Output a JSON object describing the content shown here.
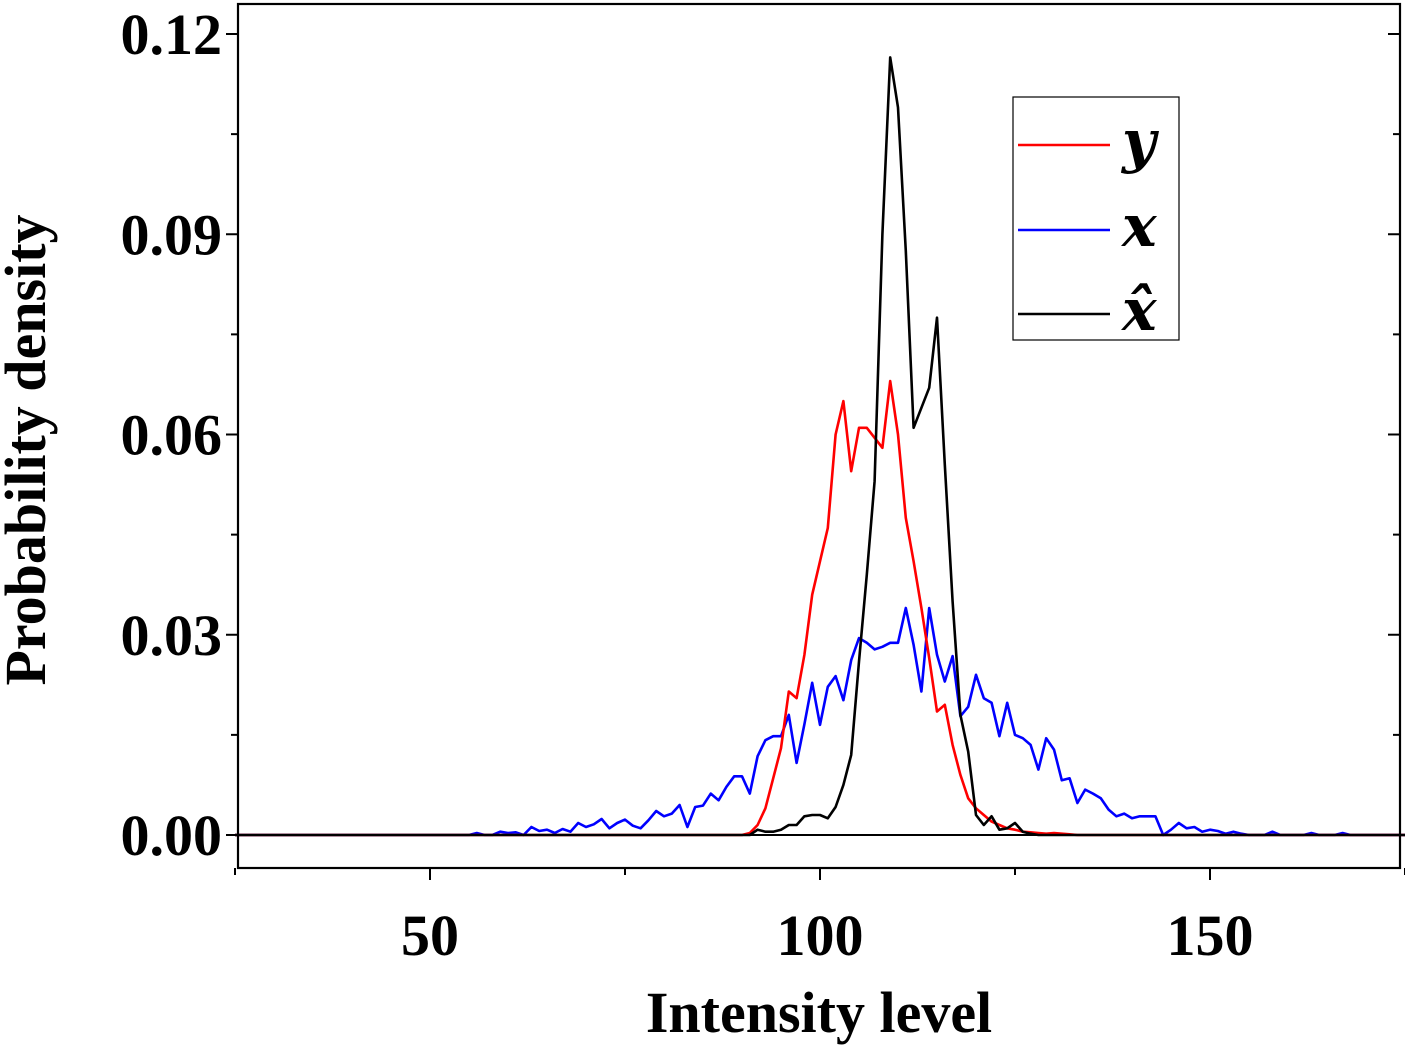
{
  "chart_data": {
    "type": "line",
    "title": "",
    "xlabel": "Intensity level",
    "ylabel": "Probability density",
    "xlim": [
      25,
      175
    ],
    "ylim": [
      -0.005,
      0.12
    ],
    "x_ticks": [
      50,
      100,
      150
    ],
    "x_tick_labels": [
      "50",
      "100",
      "150"
    ],
    "y_ticks": [
      0.0,
      0.03,
      0.06,
      0.09,
      0.12
    ],
    "y_tick_labels": [
      "0.00",
      "0.03",
      "0.06",
      "0.09",
      "0.12"
    ],
    "grid": false,
    "legend_position": "top-right",
    "series": [
      {
        "name": "y",
        "legend_label": "y",
        "color": "#ff0000",
        "points": [
          [
            25,
            0
          ],
          [
            90,
            0
          ],
          [
            91,
            0.0003
          ],
          [
            92,
            0.0015
          ],
          [
            93,
            0.004
          ],
          [
            94,
            0.0085
          ],
          [
            95,
            0.013
          ],
          [
            96,
            0.0215
          ],
          [
            97,
            0.0205
          ],
          [
            98,
            0.027
          ],
          [
            99,
            0.036
          ],
          [
            100,
            0.041
          ],
          [
            101,
            0.046
          ],
          [
            102,
            0.06
          ],
          [
            103,
            0.065
          ],
          [
            104,
            0.0545
          ],
          [
            105,
            0.061
          ],
          [
            106,
            0.061
          ],
          [
            107,
            0.0595
          ],
          [
            108,
            0.058
          ],
          [
            109,
            0.068
          ],
          [
            110,
            0.06
          ],
          [
            111,
            0.0475
          ],
          [
            112,
            0.041
          ],
          [
            113,
            0.034
          ],
          [
            114,
            0.0265
          ],
          [
            115,
            0.0185
          ],
          [
            116,
            0.0195
          ],
          [
            117,
            0.0135
          ],
          [
            118,
            0.009
          ],
          [
            119,
            0.0055
          ],
          [
            120,
            0.004
          ],
          [
            121,
            0.003
          ],
          [
            122,
            0.002
          ],
          [
            123,
            0.0015
          ],
          [
            124,
            0.001
          ],
          [
            125,
            0.0008
          ],
          [
            126,
            0.0005
          ],
          [
            127,
            0.0004
          ],
          [
            128,
            0.0003
          ],
          [
            129,
            0.0002
          ],
          [
            130,
            0.0003
          ],
          [
            131,
            0.0002
          ],
          [
            132,
            0.0001
          ],
          [
            133,
            0
          ],
          [
            175,
            0
          ]
        ]
      },
      {
        "name": "x",
        "legend_label": "x",
        "color": "#0000ff",
        "points": [
          [
            25,
            0
          ],
          [
            55,
            0
          ],
          [
            56,
            0.0003
          ],
          [
            57,
            0
          ],
          [
            58,
            0
          ],
          [
            59,
            0.0005
          ],
          [
            60,
            0.0003
          ],
          [
            61,
            0.0004
          ],
          [
            62,
            0
          ],
          [
            63,
            0.0012
          ],
          [
            64,
            0.0006
          ],
          [
            65,
            0.0008
          ],
          [
            66,
            0.0003
          ],
          [
            67,
            0.0009
          ],
          [
            68,
            0.0005
          ],
          [
            69,
            0.0018
          ],
          [
            70,
            0.0012
          ],
          [
            71,
            0.0016
          ],
          [
            72,
            0.0024
          ],
          [
            73,
            0.001
          ],
          [
            74,
            0.0018
          ],
          [
            75,
            0.0023
          ],
          [
            76,
            0.0014
          ],
          [
            77,
            0.001
          ],
          [
            78,
            0.0022
          ],
          [
            79,
            0.0036
          ],
          [
            80,
            0.0028
          ],
          [
            81,
            0.0032
          ],
          [
            82,
            0.0045
          ],
          [
            83,
            0.0012
          ],
          [
            84,
            0.0042
          ],
          [
            85,
            0.0044
          ],
          [
            86,
            0.0062
          ],
          [
            87,
            0.0052
          ],
          [
            88,
            0.0072
          ],
          [
            89,
            0.0088
          ],
          [
            90,
            0.0088
          ],
          [
            91,
            0.0062
          ],
          [
            92,
            0.0118
          ],
          [
            93,
            0.0142
          ],
          [
            94,
            0.0148
          ],
          [
            95,
            0.0148
          ],
          [
            96,
            0.018
          ],
          [
            97,
            0.0108
          ],
          [
            98,
            0.0166
          ],
          [
            99,
            0.0228
          ],
          [
            100,
            0.0165
          ],
          [
            101,
            0.0222
          ],
          [
            102,
            0.0238
          ],
          [
            103,
            0.0202
          ],
          [
            104,
            0.0262
          ],
          [
            105,
            0.0295
          ],
          [
            106,
            0.0288
          ],
          [
            107,
            0.0278
          ],
          [
            108,
            0.0282
          ],
          [
            109,
            0.0288
          ],
          [
            110,
            0.0288
          ],
          [
            111,
            0.034
          ],
          [
            112,
            0.0285
          ],
          [
            113,
            0.0215
          ],
          [
            114,
            0.034
          ],
          [
            115,
            0.027
          ],
          [
            116,
            0.023
          ],
          [
            117,
            0.0268
          ],
          [
            118,
            0.0178
          ],
          [
            119,
            0.0192
          ],
          [
            120,
            0.024
          ],
          [
            121,
            0.0205
          ],
          [
            122,
            0.0198
          ],
          [
            123,
            0.0148
          ],
          [
            124,
            0.0198
          ],
          [
            125,
            0.015
          ],
          [
            126,
            0.0145
          ],
          [
            127,
            0.0135
          ],
          [
            128,
            0.0098
          ],
          [
            129,
            0.0145
          ],
          [
            130,
            0.0128
          ],
          [
            131,
            0.0082
          ],
          [
            132,
            0.0085
          ],
          [
            133,
            0.0048
          ],
          [
            134,
            0.0068
          ],
          [
            135,
            0.0062
          ],
          [
            136,
            0.0055
          ],
          [
            137,
            0.0038
          ],
          [
            138,
            0.0028
          ],
          [
            139,
            0.0032
          ],
          [
            140,
            0.0025
          ],
          [
            141,
            0.0028
          ],
          [
            142,
            0.0028
          ],
          [
            143,
            0.0028
          ],
          [
            144,
            0
          ],
          [
            145,
            0.0008
          ],
          [
            146,
            0.0018
          ],
          [
            147,
            0.001
          ],
          [
            148,
            0.0012
          ],
          [
            149,
            0.0005
          ],
          [
            150,
            0.0008
          ],
          [
            151,
            0.0006
          ],
          [
            152,
            0.0002
          ],
          [
            153,
            0.0005
          ],
          [
            154,
            0.0002
          ],
          [
            155,
            0
          ],
          [
            157,
            0
          ],
          [
            158,
            0.0005
          ],
          [
            159,
            0
          ],
          [
            162,
            0
          ],
          [
            163,
            0.0003
          ],
          [
            164,
            0
          ],
          [
            166,
            0
          ],
          [
            167,
            0.0003
          ],
          [
            168,
            0
          ],
          [
            175,
            0
          ]
        ]
      },
      {
        "name": "x̂",
        "legend_label": "x̂",
        "color": "#000000",
        "points": [
          [
            25,
            0
          ],
          [
            91,
            0
          ],
          [
            92,
            0.0008
          ],
          [
            93,
            0.0005
          ],
          [
            94,
            0.0005
          ],
          [
            95,
            0.0008
          ],
          [
            96,
            0.0015
          ],
          [
            97,
            0.0015
          ],
          [
            98,
            0.0028
          ],
          [
            99,
            0.003
          ],
          [
            100,
            0.003
          ],
          [
            101,
            0.0025
          ],
          [
            102,
            0.0042
          ],
          [
            103,
            0.0075
          ],
          [
            104,
            0.012
          ],
          [
            105,
            0.026
          ],
          [
            106,
            0.039
          ],
          [
            107,
            0.053
          ],
          [
            108,
            0.09
          ],
          [
            109,
            0.1165
          ],
          [
            110,
            0.109
          ],
          [
            111,
            0.0875
          ],
          [
            112,
            0.061
          ],
          [
            113,
            0.064
          ],
          [
            114,
            0.067
          ],
          [
            115,
            0.0775
          ],
          [
            116,
            0.0555
          ],
          [
            117,
            0.035
          ],
          [
            118,
            0.018
          ],
          [
            119,
            0.0125
          ],
          [
            120,
            0.003
          ],
          [
            121,
            0.0015
          ],
          [
            122,
            0.0028
          ],
          [
            123,
            0.0008
          ],
          [
            124,
            0.001
          ],
          [
            125,
            0.0018
          ],
          [
            126,
            0.0005
          ],
          [
            127,
            0.0002
          ],
          [
            128,
            0
          ],
          [
            175,
            0
          ]
        ]
      }
    ]
  }
}
